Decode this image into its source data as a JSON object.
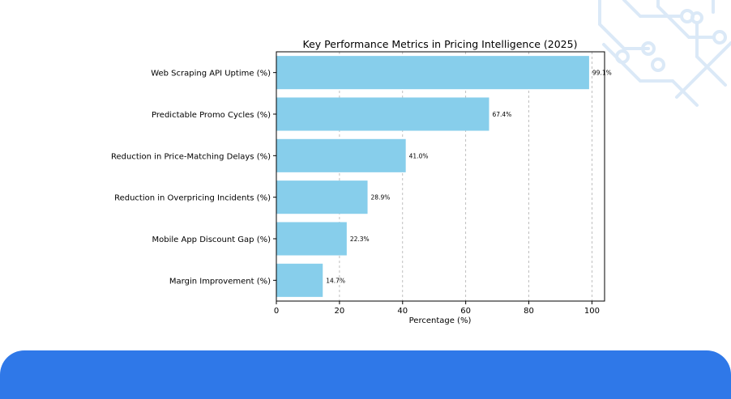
{
  "colors": {
    "bar": "#87ceeb",
    "axis": "#000000",
    "grid": "#b0b0b0",
    "footer_band": "#2f78e8",
    "decor": "#dbe9f7"
  },
  "decor": {
    "icon": "circuit-pattern-icon"
  },
  "chart_data": {
    "type": "bar",
    "orientation": "horizontal",
    "title": "Key Performance Metrics in Pricing Intelligence (2025)",
    "xlabel": "Percentage (%)",
    "ylabel": "",
    "xlim": [
      0,
      104
    ],
    "xticks": [
      0,
      20,
      40,
      60,
      80,
      100
    ],
    "grid": "x, dashed",
    "categories": [
      "Web Scraping API Uptime (%)",
      "Predictable Promo Cycles (%)",
      "Reduction in Price-Matching Delays (%)",
      "Reduction in Overpricing Incidents (%)",
      "Mobile App Discount Gap (%)",
      "Margin Improvement (%)"
    ],
    "values": [
      99.1,
      67.4,
      41.0,
      28.9,
      22.3,
      14.7
    ],
    "value_labels": [
      "99.1%",
      "67.4%",
      "41.0%",
      "28.9%",
      "22.3%",
      "14.7%"
    ]
  }
}
